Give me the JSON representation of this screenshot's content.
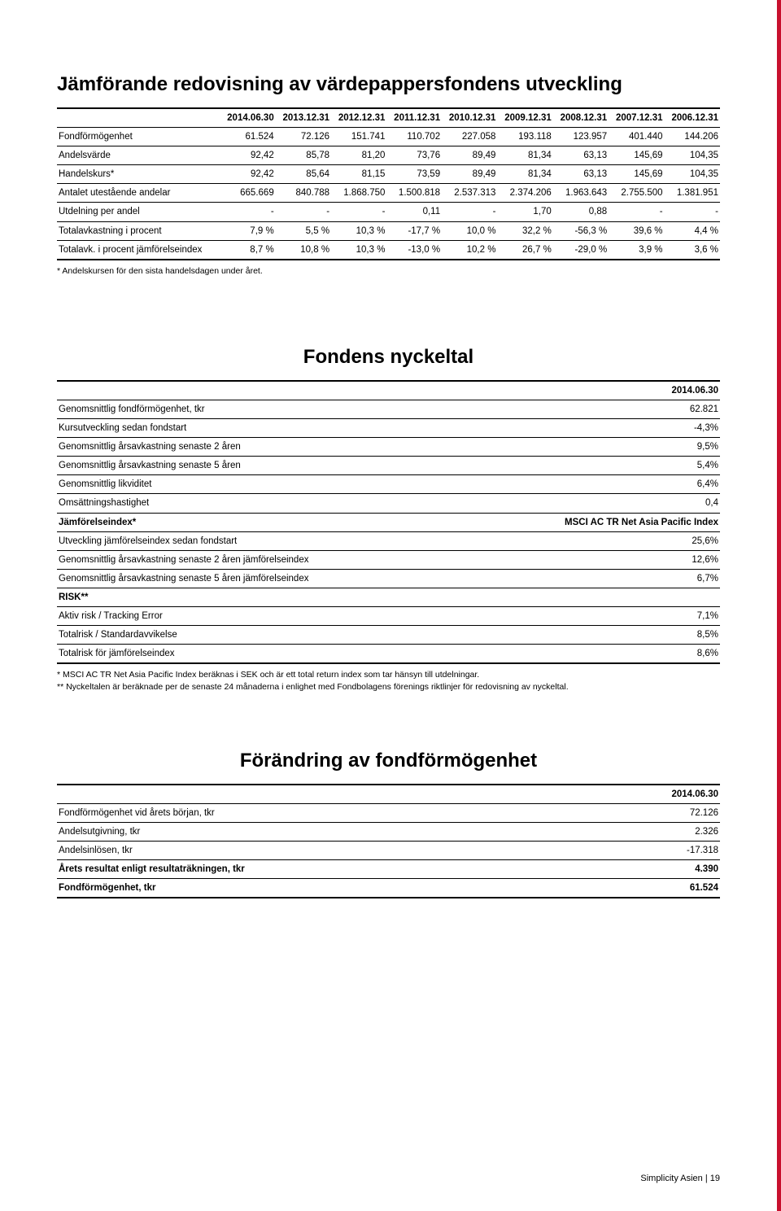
{
  "section1": {
    "title": "Jämförande redovisning av värdepappersfondens utveckling",
    "columns": [
      "",
      "2014.06.30",
      "2013.12.31",
      "2012.12.31",
      "2011.12.31",
      "2010.12.31",
      "2009.12.31",
      "2008.12.31",
      "2007.12.31",
      "2006.12.31"
    ],
    "rows": [
      {
        "label": "Fondförmögenhet",
        "cells": [
          "61.524",
          "72.126",
          "151.741",
          "110.702",
          "227.058",
          "193.118",
          "123.957",
          "401.440",
          "144.206"
        ]
      },
      {
        "label": "Andelsvärde",
        "cells": [
          "92,42",
          "85,78",
          "81,20",
          "73,76",
          "89,49",
          "81,34",
          "63,13",
          "145,69",
          "104,35"
        ]
      },
      {
        "label": "Handelskurs*",
        "cells": [
          "92,42",
          "85,64",
          "81,15",
          "73,59",
          "89,49",
          "81,34",
          "63,13",
          "145,69",
          "104,35"
        ]
      },
      {
        "label": "Antalet utestående andelar",
        "cells": [
          "665.669",
          "840.788",
          "1.868.750",
          "1.500.818",
          "2.537.313",
          "2.374.206",
          "1.963.643",
          "2.755.500",
          "1.381.951"
        ]
      },
      {
        "label": "Utdelning per andel",
        "cells": [
          "-",
          "-",
          "-",
          "0,11",
          "-",
          "1,70",
          "0,88",
          "-",
          "-"
        ]
      },
      {
        "label": "Totalavkastning i procent",
        "cells": [
          "7,9 %",
          "5,5 %",
          "10,3 %",
          "-17,7 %",
          "10,0 %",
          "32,2 %",
          "-56,3 %",
          "39,6 %",
          "4,4 %"
        ]
      },
      {
        "label": "Totalavk. i procent jämförelseindex",
        "cells": [
          "8,7 %",
          "10,8 %",
          "10,3 %",
          "-13,0 %",
          "10,2 %",
          "26,7 %",
          "-29,0 %",
          "3,9 %",
          "3,6 %"
        ]
      }
    ],
    "footnote": "* Andelskursen för den sista handelsdagen under året."
  },
  "section2": {
    "title": "Fondens nyckeltal",
    "date_header": "2014.06.30",
    "rows": [
      {
        "label": "Genomsnittlig fondförmögenhet, tkr",
        "value": "62.821"
      },
      {
        "label": "Kursutveckling sedan fondstart",
        "value": "-4,3%"
      },
      {
        "label": "Genomsnittlig årsavkastning senaste 2 åren",
        "value": "9,5%"
      },
      {
        "label": "Genomsnittlig årsavkastning senaste 5 åren",
        "value": "5,4%"
      },
      {
        "label": "Genomsnittlig likviditet",
        "value": "6,4%"
      },
      {
        "label": "Omsättningshastighet",
        "value": "0,4"
      },
      {
        "label": "Jämförelseindex*",
        "value": "MSCI AC TR Net Asia Pacific Index",
        "bold": true
      },
      {
        "label": "Utveckling jämförelseindex sedan fondstart",
        "value": "25,6%"
      },
      {
        "label": "Genomsnittlig årsavkastning senaste 2 åren jämförelseindex",
        "value": "12,6%"
      },
      {
        "label": "Genomsnittlig årsavkastning senaste 5 åren jämförelseindex",
        "value": "6,7%"
      },
      {
        "label": "RISK**",
        "value": "",
        "bold": true
      },
      {
        "label": "Aktiv risk / Tracking Error",
        "value": "7,1%"
      },
      {
        "label": "Totalrisk / Standardavvikelse",
        "value": "8,5%"
      },
      {
        "label": "Totalrisk för jämförelseindex",
        "value": "8,6%"
      }
    ],
    "footnote1": "* MSCI AC TR Net Asia Pacific Index beräknas i SEK och är ett total return index som tar hänsyn till utdelningar.",
    "footnote2": "** Nyckeltalen är beräknade per de senaste 24 månaderna i enlighet med Fondbolagens förenings riktlinjer för redovisning av nyckeltal."
  },
  "section3": {
    "title": "Förändring av fondförmögenhet",
    "date_header": "2014.06.30",
    "rows": [
      {
        "label": "Fondförmögenhet vid årets början, tkr",
        "value": "72.126"
      },
      {
        "label": "Andelsutgivning, tkr",
        "value": "2.326"
      },
      {
        "label": "Andelsinlösen, tkr",
        "value": "-17.318"
      },
      {
        "label": "Årets resultat enligt resultaträkningen, tkr",
        "value": "4.390",
        "bold": true
      },
      {
        "label": "Fondförmögenhet, tkr",
        "value": "61.524",
        "bold": true
      }
    ]
  },
  "footer": {
    "text": "Simplicity Asien | 19"
  }
}
